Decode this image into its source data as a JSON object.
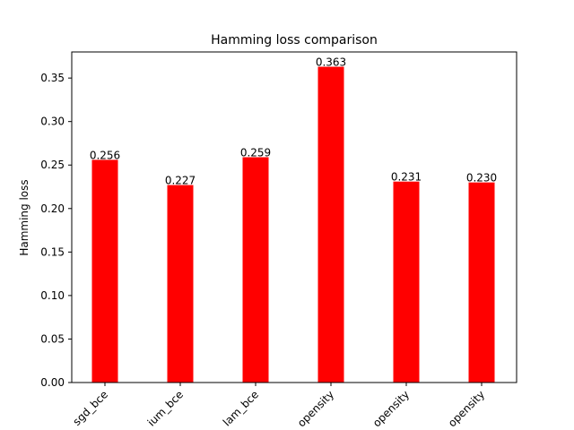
{
  "chart_data": {
    "type": "bar",
    "title": "Hamming loss comparison",
    "xlabel": "",
    "ylabel": "Hamming loss",
    "categories": [
      "sgd_bce",
      "ium_bce",
      "lam_bce",
      "opensity",
      "opensity",
      "opensity"
    ],
    "values": [
      0.256,
      0.227,
      0.259,
      0.363,
      0.231,
      0.23
    ],
    "data_labels": [
      "0.256",
      "0.227",
      "0.259",
      "0.363",
      "0.231",
      "0.230"
    ],
    "ylim": [
      0,
      0.38
    ],
    "yticks": [
      0.0,
      0.05,
      0.1,
      0.15,
      0.2,
      0.25,
      0.3,
      0.35
    ],
    "ytick_labels": [
      "0.00",
      "0.05",
      "0.10",
      "0.15",
      "0.20",
      "0.25",
      "0.30",
      "0.35"
    ],
    "grid": false,
    "colors": {
      "bar": "#ff0000",
      "axes": "#000000"
    }
  }
}
